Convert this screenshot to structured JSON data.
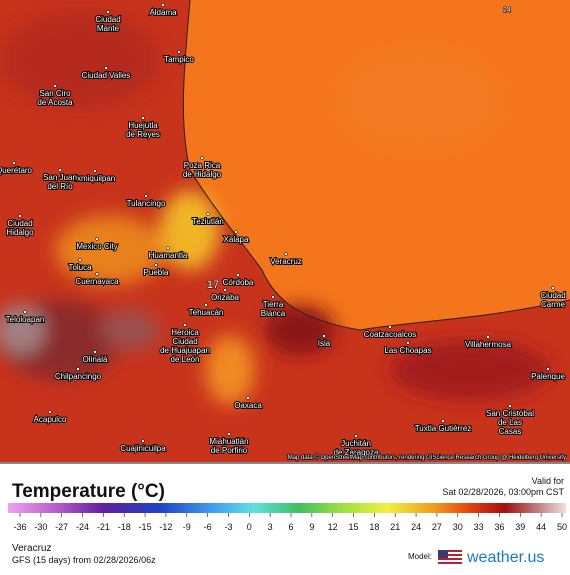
{
  "map": {
    "places": [
      {
        "lines": [
          "Ciudad",
          "Mante"
        ]
      },
      {
        "lines": [
          "Aldama"
        ]
      },
      {
        "lines": [
          "Tampico"
        ]
      },
      {
        "lines": [
          "Ciudad Valles"
        ]
      },
      {
        "lines": [
          "San Ciro",
          "de Acosta"
        ]
      },
      {
        "lines": [
          "Huejutla",
          "de Reyes"
        ]
      },
      {
        "lines": [
          "Poza Rica",
          "de Hidalgo"
        ]
      },
      {
        "lines": [
          "Ixmiquilpan"
        ]
      },
      {
        "lines": [
          "San Juan",
          "del Río"
        ]
      },
      {
        "lines": [
          "Querétaro"
        ]
      },
      {
        "lines": [
          "Tulancingo"
        ]
      },
      {
        "lines": [
          "Teziutlán"
        ]
      },
      {
        "lines": [
          "Ciudad",
          "Hidalgo"
        ]
      },
      {
        "lines": [
          "Mexico City"
        ]
      },
      {
        "lines": [
          "Xalapa"
        ]
      },
      {
        "lines": [
          "Huamantla"
        ]
      },
      {
        "lines": [
          "Toluca"
        ]
      },
      {
        "lines": [
          "Veracruz"
        ]
      },
      {
        "lines": [
          "Cuernavaca"
        ]
      },
      {
        "lines": [
          "Puebla"
        ]
      },
      {
        "lines": [
          "Córdoba"
        ]
      },
      {
        "lines": [
          "Orizaba"
        ]
      },
      {
        "lines": [
          "Tierra",
          "Blanca"
        ]
      },
      {
        "lines": [
          "Tehuacán"
        ]
      },
      {
        "lines": [
          "Teloloapan"
        ]
      },
      {
        "lines": [
          "Heroica",
          "Ciudad",
          "de Huajuapan",
          "de León"
        ]
      },
      {
        "lines": [
          "Coatzacoalcos"
        ]
      },
      {
        "lines": [
          "Isla"
        ]
      },
      {
        "lines": [
          "Las Choapas"
        ]
      },
      {
        "lines": [
          "Villahermosa"
        ]
      },
      {
        "lines": [
          "Olinalá"
        ]
      },
      {
        "lines": [
          "Chilpancingo"
        ]
      },
      {
        "lines": [
          "Palenque"
        ]
      },
      {
        "lines": [
          "Oaxaca"
        ]
      },
      {
        "lines": [
          "San Cristóbal",
          "de Las",
          "Casas"
        ]
      },
      {
        "lines": [
          "Acapulco"
        ]
      },
      {
        "lines": [
          "Tuxtla Gutiérrez"
        ]
      },
      {
        "lines": [
          "Miahuatlán",
          "de Porfirio"
        ]
      },
      {
        "lines": [
          "Juchitán",
          "de Zaragoza"
        ]
      },
      {
        "lines": [
          "Cuajinicuilpa"
        ]
      },
      {
        "lines": [
          "Ciudad",
          "Carme"
        ]
      }
    ],
    "contour_labels": [
      "24",
      "17"
    ],
    "attribution": "Map data © OpenStreetMap contributors, rendering GIScience Research Group @ Heidelberg University"
  },
  "legend": {
    "title": "Temperature (°C)",
    "valid_label": "Valid for",
    "valid_time": "Sat 02/28/2026, 03:00pm CST",
    "ticks": [
      -36,
      -30,
      -27,
      -24,
      -21,
      -18,
      -15,
      -12,
      -9,
      -6,
      -3,
      0,
      3,
      6,
      9,
      12,
      15,
      18,
      21,
      24,
      27,
      30,
      33,
      36,
      39,
      44,
      50
    ],
    "location": "Veracruz",
    "run": "GFS (15 days) from 02/28/2026/06z",
    "model_label": "Model:",
    "brand": "weather.us"
  }
}
